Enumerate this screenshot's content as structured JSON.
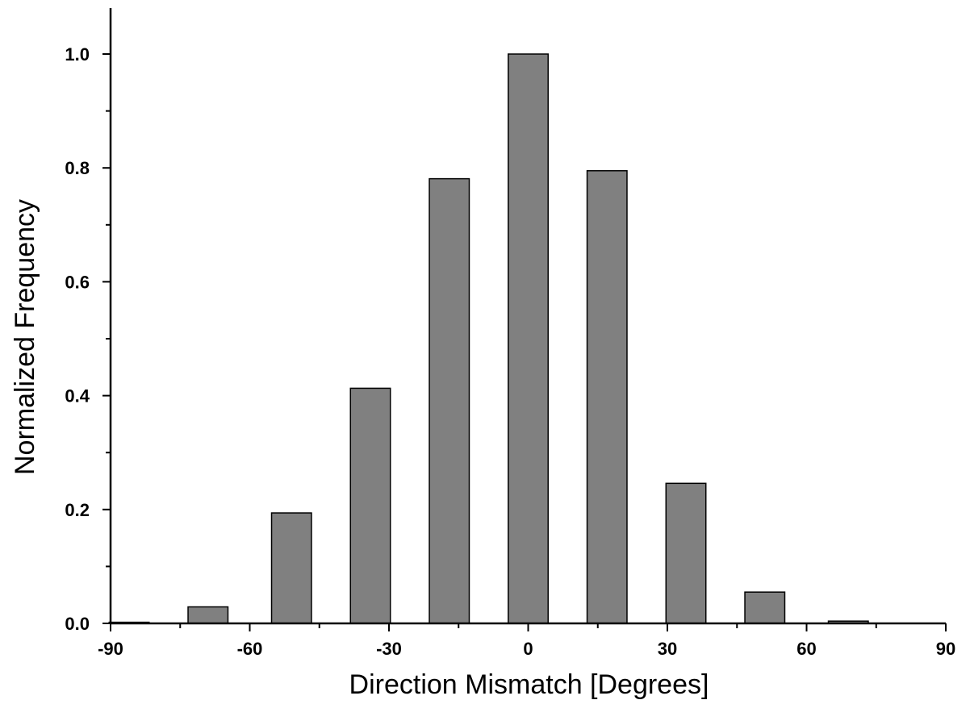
{
  "chart_data": {
    "type": "bar",
    "title": "",
    "xlabel": "Direction Mismatch [Degrees]",
    "ylabel": "Normalized Frequency",
    "xlim": [
      -90,
      90
    ],
    "ylim": [
      0,
      1.0
    ],
    "xticks": [
      -90,
      -60,
      -30,
      0,
      30,
      60,
      90
    ],
    "xtick_labels": [
      "-90",
      "-60",
      "-30",
      "0",
      "30",
      "60",
      "90"
    ],
    "yticks": [
      0.0,
      0.2,
      0.4,
      0.6,
      0.8,
      1.0
    ],
    "ytick_labels": [
      "0.0",
      "0.2",
      "0.4",
      "0.6",
      "0.8",
      "1.0"
    ],
    "bin_width": 8.6,
    "bars": [
      {
        "center": -86,
        "value": 0.002
      },
      {
        "center": -69,
        "value": 0.029
      },
      {
        "center": -51,
        "value": 0.194
      },
      {
        "center": -34,
        "value": 0.413
      },
      {
        "center": -17,
        "value": 0.781
      },
      {
        "center": 0,
        "value": 1.0
      },
      {
        "center": 17,
        "value": 0.795
      },
      {
        "center": 34,
        "value": 0.246
      },
      {
        "center": 51,
        "value": 0.055
      },
      {
        "center": 69,
        "value": 0.004
      }
    ],
    "bar_color": "#808080",
    "grid": false,
    "legend": "none"
  }
}
